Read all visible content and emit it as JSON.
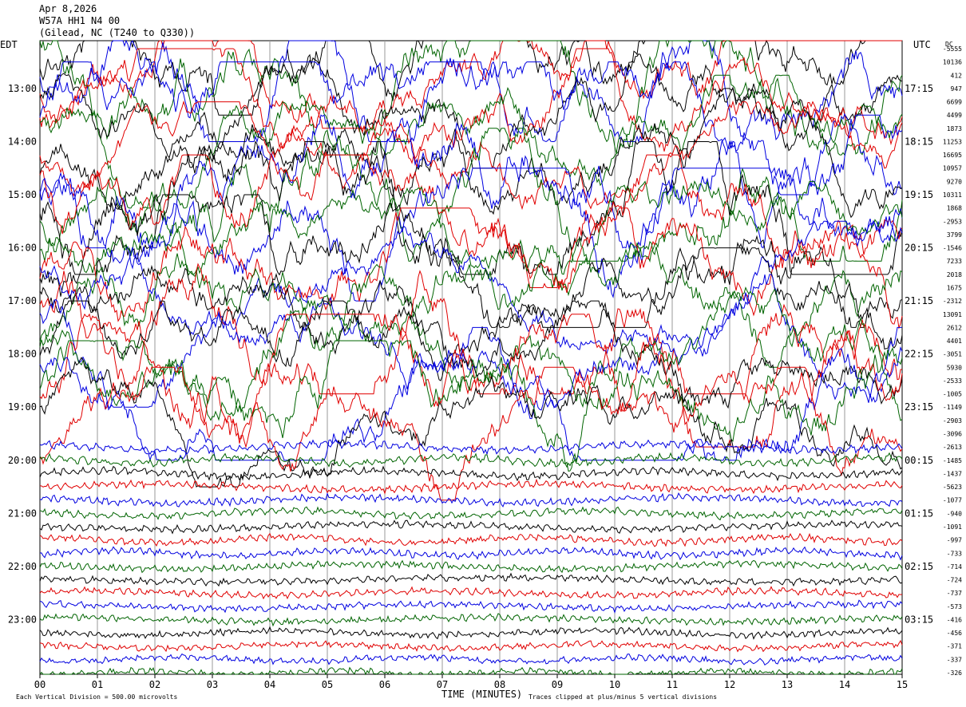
{
  "header": {
    "date": "Apr 8,2026",
    "station": "W57A HH1 N4 00",
    "location": "(Gilead, NC (T240 to Q330))"
  },
  "left_axis_title": "EDT",
  "right_axis_title": "UTC",
  "dc_header": "DC",
  "footer": {
    "division_note": "Each Vertical Division =  500.00 microvolts",
    "xlabel": "TIME (MINUTES)",
    "clip_note": "Traces clipped at plus/minus 5 vertical divisions"
  },
  "colors": {
    "black": "#000000",
    "red": "#e00000",
    "blue": "#0000e0",
    "green": "#006400",
    "grid": "#9a9a9a"
  },
  "chart_data": {
    "type": "line",
    "title": "Apr 8,2026 W57A HH1 N4 00",
    "xlabel": "TIME (MINUTES)",
    "x_range": [
      0,
      15
    ],
    "x_ticks": [
      "00",
      "01",
      "02",
      "03",
      "04",
      "05",
      "06",
      "07",
      "08",
      "09",
      "10",
      "11",
      "12",
      "13",
      "14",
      "15"
    ],
    "left_hours": [
      "13:00",
      "14:00",
      "15:00",
      "16:00",
      "17:00",
      "18:00",
      "19:00",
      "20:00",
      "21:00",
      "22:00",
      "23:00"
    ],
    "right_hours": [
      "17:15",
      "18:15",
      "19:15",
      "20:15",
      "21:15",
      "22:15",
      "23:15",
      "00:15",
      "01:15",
      "02:15",
      "03:15"
    ],
    "trace_colors": [
      "black",
      "red",
      "blue",
      "green"
    ],
    "dc_offsets": [
      -5555,
      10136,
      412,
      947,
      6699,
      4499,
      1873,
      11253,
      16695,
      10957,
      9270,
      10311,
      1868,
      -2953,
      3799,
      -1546,
      7233,
      2018,
      1675,
      -2312,
      13091,
      2612,
      4401,
      -3051,
      5930,
      -2533,
      -1005,
      -1149,
      -2903,
      -3096,
      -2613,
      -1485,
      -1437,
      -5623,
      -1077,
      -940,
      -1091,
      -997,
      -733,
      -714,
      -724,
      -737,
      -573,
      -416,
      -456,
      -371,
      -337,
      -326
    ],
    "division_microvolts": 500.0,
    "clip_divisions": 5
  }
}
